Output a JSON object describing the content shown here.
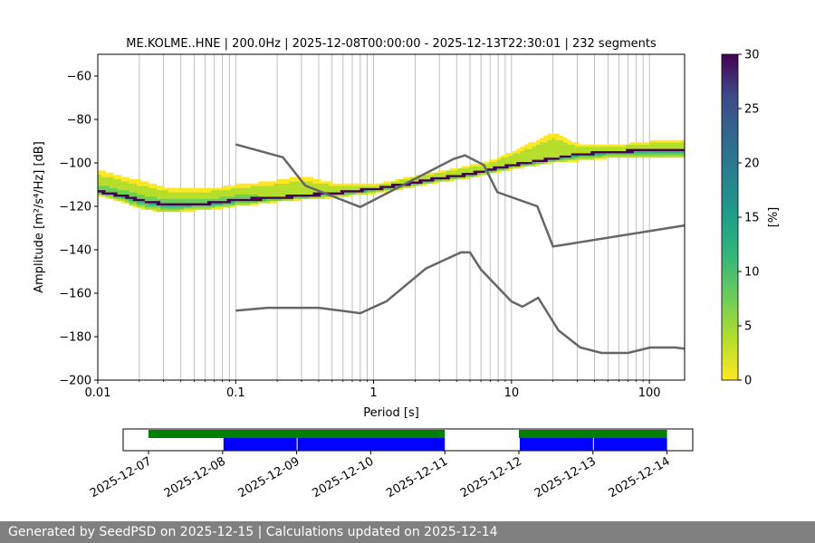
{
  "chart_data": [
    {
      "type": "heatmap",
      "title": "ME.KOLME..HNE | 200.0Hz | 2025-12-08T00:00:00 - 2025-12-13T22:30:01 | 232 segments",
      "xlabel": "Period [s]",
      "ylabel": "Amplitude [m²/s⁴/Hz] [dB]",
      "x_scale": "log",
      "xlim": [
        0.01,
        180
      ],
      "ylim": [
        -200,
        -50
      ],
      "x_tick_labels": [
        "0.01",
        "0.1",
        "1",
        "10",
        "100"
      ],
      "x_tick_values": [
        0.01,
        0.1,
        1,
        10,
        100
      ],
      "y_tick_values": [
        -200,
        -180,
        -160,
        -140,
        -120,
        -100,
        -80,
        -60
      ],
      "y_tick_labels": [
        "−200",
        "−180",
        "−160",
        "−140",
        "−120",
        "−100",
        "−80",
        "−60"
      ],
      "grid": "x-minor",
      "colorbar": {
        "label": "[%]",
        "range": [
          0,
          30
        ],
        "tick_labels": [
          "0",
          "5",
          "10",
          "15",
          "20",
          "25",
          "30"
        ],
        "tick_values": [
          0,
          5,
          10,
          15,
          20,
          25,
          30
        ],
        "colormap": "viridis_r"
      },
      "density_ridge": {
        "period": [
          0.01,
          0.015,
          0.02,
          0.03,
          0.05,
          0.08,
          0.1,
          0.2,
          0.3,
          0.5,
          1,
          2,
          3,
          5,
          7,
          10,
          20,
          30,
          50,
          100,
          180
        ],
        "mode_db": [
          -113,
          -115,
          -117,
          -119,
          -119,
          -118,
          -117,
          -116,
          -115,
          -114,
          -112,
          -109,
          -107,
          -105,
          -103,
          -101,
          -98,
          -96,
          -95,
          -94,
          -94
        ],
        "upper_db": [
          -104,
          -107,
          -109,
          -112,
          -113,
          -112,
          -111,
          -109,
          -107,
          -110,
          -111,
          -107,
          -105,
          -102,
          -100,
          -96,
          -87,
          -92,
          -93,
          -91,
          -90
        ],
        "lower_db": [
          -114,
          -117,
          -120,
          -122,
          -121,
          -120,
          -119,
          -117,
          -116,
          -115,
          -113,
          -110,
          -108,
          -106,
          -104,
          -102,
          -99,
          -98,
          -97,
          -97,
          -97
        ]
      },
      "reference_curves": [
        {
          "x": [
            0.1,
            0.22,
            0.32,
            0.8,
            3.8,
            4.6,
            6.3,
            7.9,
            15.4,
            20,
            180
          ],
          "y": [
            -91.5,
            -97.4,
            -110.5,
            -120.3,
            -98.2,
            -96.5,
            -101,
            -113.5,
            -120,
            -138.5,
            -128.8
          ]
        },
        {
          "x": [
            0.1,
            0.17,
            0.4,
            0.8,
            1.24,
            2.4,
            4.3,
            5.0,
            6.0,
            10,
            12,
            15.6,
            21.9,
            31.6,
            45,
            70,
            101,
            154,
            180
          ],
          "y": [
            -168,
            -166.7,
            -166.7,
            -169.2,
            -163.7,
            -148.6,
            -141.2,
            -141.2,
            -149.1,
            -163.8,
            -166.2,
            -162.1,
            -177.1,
            -185,
            -187.5,
            -187.5,
            -185,
            -185,
            -185.5
          ]
        }
      ]
    },
    {
      "type": "timeline",
      "x_tick_labels": [
        "2025-12-07",
        "2025-12-08",
        "2025-12-09",
        "2025-12-10",
        "2025-12-11",
        "2025-12-12",
        "2025-12-13",
        "2025-12-14"
      ],
      "available_data": [
        {
          "start": "2025-12-07",
          "end": "2025-12-11",
          "color": "#008000"
        },
        {
          "start": "2025-12-12",
          "end": "2025-12-14",
          "color": "#008000"
        }
      ],
      "used_segments": [
        {
          "start": "2025-12-08",
          "end": "2025-12-09",
          "color": "#0000ff"
        },
        {
          "start": "2025-12-09",
          "end": "2025-12-11",
          "color": "#0000ff"
        },
        {
          "start": "2025-12-12",
          "end": "2025-12-13",
          "color": "#0000ff"
        },
        {
          "start": "2025-12-13",
          "end": "2025-12-14",
          "color": "#0000ff"
        }
      ]
    }
  ],
  "footer": "Generated by SeedPSD on 2025-12-15 | Calculations updated on 2025-12-14"
}
